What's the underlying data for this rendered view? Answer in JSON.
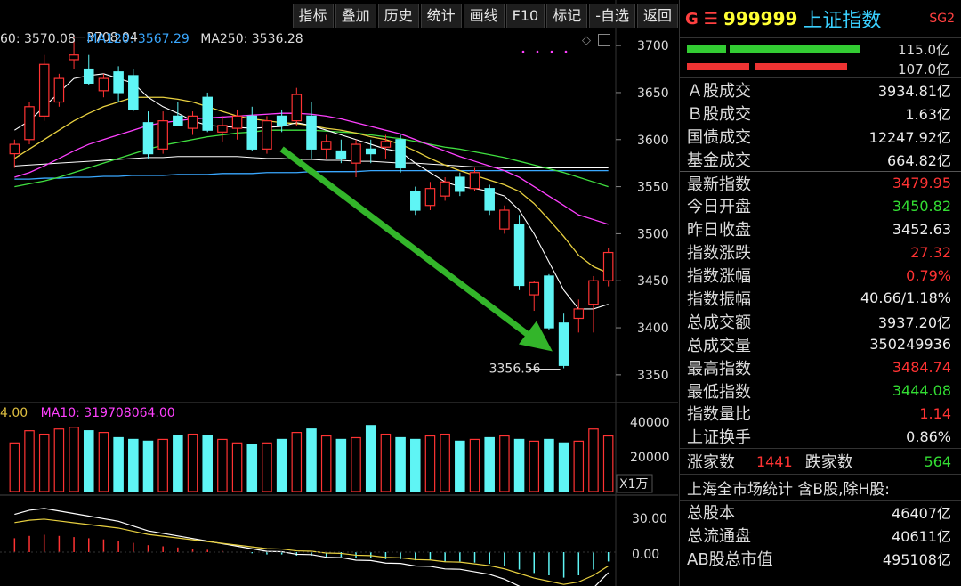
{
  "toolbar": {
    "buttons": [
      "指标",
      "叠加",
      "历史",
      "统计",
      "画线",
      "F10",
      "标记",
      "-自选",
      "返回"
    ]
  },
  "ma_line": {
    "ma60": "60: 3570.08",
    "ma120": "MA120: 3567.29",
    "ma250": "MA250: 3536.28"
  },
  "price_axis": [
    "3700",
    "3650",
    "3600",
    "3550",
    "3500",
    "3450",
    "3400",
    "3350"
  ],
  "annotations": {
    "high_label": "3708.94",
    "low_label": "3356.56"
  },
  "volume_line": {
    "ma5": "4.00",
    "ma10": "MA10: 319708064.00"
  },
  "volume_axis": [
    "40000",
    "20000"
  ],
  "volume_unit": "X1万",
  "macd_axis": [
    "30.00",
    "0.00"
  ],
  "colors": {
    "up": "#ff3333",
    "down": "#5ff5f5",
    "ma5": "#ffffff",
    "ma10": "#e8d040",
    "ma20": "#ff40ff",
    "ma30": "#40e040",
    "ma60": "#ffffff",
    "ma120": "#3aa8ff",
    "arrow": "#33b52a"
  },
  "chart_data": {
    "type": "candlestick",
    "ylim": [
      3330,
      3720
    ],
    "candles": [
      {
        "o": 3585,
        "h": 3600,
        "l": 3570,
        "c": 3595
      },
      {
        "o": 3600,
        "h": 3640,
        "l": 3595,
        "c": 3635
      },
      {
        "o": 3625,
        "h": 3690,
        "l": 3620,
        "c": 3680
      },
      {
        "o": 3640,
        "h": 3670,
        "l": 3635,
        "c": 3665
      },
      {
        "o": 3685,
        "h": 3709,
        "l": 3675,
        "c": 3690
      },
      {
        "o": 3675,
        "h": 3690,
        "l": 3658,
        "c": 3660
      },
      {
        "o": 3652,
        "h": 3670,
        "l": 3645,
        "c": 3665
      },
      {
        "o": 3672,
        "h": 3678,
        "l": 3640,
        "c": 3650
      },
      {
        "o": 3668,
        "h": 3675,
        "l": 3630,
        "c": 3632
      },
      {
        "o": 3618,
        "h": 3630,
        "l": 3580,
        "c": 3585
      },
      {
        "o": 3590,
        "h": 3630,
        "l": 3585,
        "c": 3620
      },
      {
        "o": 3625,
        "h": 3640,
        "l": 3618,
        "c": 3615
      },
      {
        "o": 3612,
        "h": 3630,
        "l": 3605,
        "c": 3625
      },
      {
        "o": 3645,
        "h": 3650,
        "l": 3608,
        "c": 3610
      },
      {
        "o": 3608,
        "h": 3625,
        "l": 3598,
        "c": 3615
      },
      {
        "o": 3612,
        "h": 3632,
        "l": 3600,
        "c": 3625
      },
      {
        "o": 3625,
        "h": 3635,
        "l": 3588,
        "c": 3590
      },
      {
        "o": 3590,
        "h": 3625,
        "l": 3585,
        "c": 3620
      },
      {
        "o": 3625,
        "h": 3632,
        "l": 3608,
        "c": 3615
      },
      {
        "o": 3620,
        "h": 3655,
        "l": 3615,
        "c": 3648
      },
      {
        "o": 3625,
        "h": 3640,
        "l": 3580,
        "c": 3590
      },
      {
        "o": 3590,
        "h": 3605,
        "l": 3580,
        "c": 3598
      },
      {
        "o": 3588,
        "h": 3600,
        "l": 3575,
        "c": 3580
      },
      {
        "o": 3575,
        "h": 3600,
        "l": 3560,
        "c": 3595
      },
      {
        "o": 3590,
        "h": 3600,
        "l": 3575,
        "c": 3585
      },
      {
        "o": 3592,
        "h": 3605,
        "l": 3580,
        "c": 3598
      },
      {
        "o": 3600,
        "h": 3605,
        "l": 3565,
        "c": 3570
      },
      {
        "o": 3545,
        "h": 3550,
        "l": 3520,
        "c": 3525
      },
      {
        "o": 3530,
        "h": 3555,
        "l": 3525,
        "c": 3548
      },
      {
        "o": 3540,
        "h": 3560,
        "l": 3535,
        "c": 3555
      },
      {
        "o": 3560,
        "h": 3565,
        "l": 3540,
        "c": 3545
      },
      {
        "o": 3548,
        "h": 3570,
        "l": 3545,
        "c": 3565
      },
      {
        "o": 3548,
        "h": 3552,
        "l": 3520,
        "c": 3525
      },
      {
        "o": 3505,
        "h": 3530,
        "l": 3500,
        "c": 3525
      },
      {
        "o": 3510,
        "h": 3520,
        "l": 3440,
        "c": 3445
      },
      {
        "o": 3435,
        "h": 3450,
        "l": 3418,
        "c": 3448
      },
      {
        "o": 3455,
        "h": 3457,
        "l": 3398,
        "c": 3400
      },
      {
        "o": 3405,
        "h": 3415,
        "l": 3357,
        "c": 3360
      },
      {
        "o": 3410,
        "h": 3430,
        "l": 3395,
        "c": 3420
      },
      {
        "o": 3425,
        "h": 3455,
        "l": 3395,
        "c": 3450
      },
      {
        "o": 3450,
        "h": 3485,
        "l": 3444,
        "c": 3480
      }
    ],
    "volume": [
      28000,
      35000,
      33000,
      36000,
      37000,
      35000,
      34000,
      31000,
      30000,
      29000,
      30000,
      32000,
      33000,
      32000,
      30000,
      28000,
      27000,
      28000,
      30000,
      34000,
      36000,
      32000,
      30000,
      31000,
      38000,
      33000,
      31000,
      30000,
      32000,
      33000,
      29000,
      30000,
      31000,
      32000,
      30000,
      29000,
      30000,
      28000,
      29000,
      36000,
      32000
    ],
    "ma_series": {
      "ma5": [
        3610,
        3620,
        3635,
        3650,
        3665,
        3668,
        3670,
        3665,
        3660,
        3645,
        3635,
        3628,
        3620,
        3615,
        3614,
        3613,
        3612,
        3613,
        3614,
        3618,
        3615,
        3610,
        3605,
        3600,
        3595,
        3590,
        3587,
        3575,
        3565,
        3555,
        3550,
        3548,
        3545,
        3540,
        3525,
        3500,
        3470,
        3440,
        3420,
        3420,
        3425
      ],
      "ma10": [
        3580,
        3590,
        3600,
        3610,
        3620,
        3628,
        3635,
        3640,
        3645,
        3645,
        3645,
        3643,
        3640,
        3635,
        3630,
        3625,
        3622,
        3620,
        3618,
        3617,
        3615,
        3612,
        3610,
        3607,
        3603,
        3600,
        3595,
        3588,
        3580,
        3573,
        3567,
        3562,
        3557,
        3552,
        3545,
        3532,
        3515,
        3497,
        3477,
        3465,
        3458
      ],
      "ma20": [
        3560,
        3565,
        3572,
        3580,
        3588,
        3595,
        3600,
        3605,
        3610,
        3615,
        3618,
        3620,
        3622,
        3623,
        3624,
        3625,
        3626,
        3627,
        3628,
        3628,
        3627,
        3625,
        3622,
        3618,
        3614,
        3610,
        3606,
        3600,
        3594,
        3588,
        3582,
        3577,
        3572,
        3567,
        3560,
        3550,
        3540,
        3530,
        3520,
        3515,
        3510
      ],
      "ma30": [
        3550,
        3553,
        3556,
        3560,
        3565,
        3570,
        3575,
        3580,
        3585,
        3590,
        3594,
        3597,
        3600,
        3603,
        3605,
        3607,
        3608,
        3610,
        3610,
        3610,
        3610,
        3609,
        3608,
        3607,
        3605,
        3603,
        3601,
        3598,
        3595,
        3592,
        3590,
        3587,
        3584,
        3581,
        3577,
        3573,
        3569,
        3565,
        3560,
        3555,
        3550
      ],
      "ma60": [
        3572,
        3573,
        3574,
        3575,
        3576,
        3577,
        3578,
        3579,
        3580,
        3581,
        3581,
        3582,
        3582,
        3582,
        3582,
        3582,
        3581,
        3580,
        3580,
        3579,
        3579,
        3578,
        3578,
        3577,
        3577,
        3576,
        3575,
        3575,
        3574,
        3573,
        3572,
        3571,
        3571,
        3570,
        3570,
        3570,
        3570,
        3570,
        3570,
        3570,
        3570
      ],
      "ma120": [
        3558,
        3558,
        3559,
        3559,
        3560,
        3560,
        3561,
        3561,
        3562,
        3562,
        3562,
        3563,
        3563,
        3563,
        3564,
        3564,
        3564,
        3565,
        3565,
        3565,
        3566,
        3566,
        3566,
        3566,
        3567,
        3567,
        3567,
        3567,
        3567,
        3567,
        3567,
        3567,
        3567,
        3567,
        3567,
        3567,
        3567,
        3567,
        3567,
        3567,
        3567
      ]
    },
    "macd_hist": [
      12,
      14,
      15,
      14,
      13,
      12,
      11,
      10,
      8,
      6,
      5,
      4,
      3,
      2,
      1,
      0,
      -1,
      -2,
      -2,
      -3,
      -3,
      -4,
      -4,
      -5,
      -5,
      -6,
      -6,
      -7,
      -7,
      -8,
      -8,
      -9,
      -10,
      -12,
      -15,
      -18,
      -20,
      -22,
      -20,
      -15,
      -8
    ]
  },
  "panel": {
    "header": {
      "g": "G",
      "menu": "☰",
      "code": "999999",
      "name": "上证指数",
      "sg": "SG2"
    },
    "bars": [
      {
        "value": "115.0亿",
        "color": "#33cc33"
      },
      {
        "value": "107.0亿",
        "color": "#ee3333"
      }
    ],
    "turnover": [
      {
        "label": "Ａ股成交",
        "value": "3934.81亿"
      },
      {
        "label": "Ｂ股成交",
        "value": "1.63亿"
      },
      {
        "label": "国债成交",
        "value": "12247.92亿"
      },
      {
        "label": "基金成交",
        "value": "664.82亿"
      }
    ],
    "stats": [
      {
        "label": "最新指数",
        "value": "3479.95",
        "color": "red"
      },
      {
        "label": "今日开盘",
        "value": "3450.82",
        "color": "green"
      },
      {
        "label": "昨日收盘",
        "value": "3452.63",
        "color": "white"
      },
      {
        "label": "指数涨跌",
        "value": "27.32",
        "color": "red"
      },
      {
        "label": "指数涨幅",
        "value": "0.79%",
        "color": "red"
      },
      {
        "label": "指数振幅",
        "value": "40.66/1.18%",
        "color": "white"
      },
      {
        "label": "总成交额",
        "value": "3937.20亿",
        "color": "white"
      },
      {
        "label": "总成交量",
        "value": "350249936",
        "color": "white"
      },
      {
        "label": "最高指数",
        "value": "3484.74",
        "color": "red"
      },
      {
        "label": "最低指数",
        "value": "3444.08",
        "color": "green"
      },
      {
        "label": "指数量比",
        "value": "1.14",
        "color": "red"
      },
      {
        "label": "上证换手",
        "value": "0.86%",
        "color": "white"
      }
    ],
    "updown": {
      "up_label": "涨家数",
      "up": "1441",
      "down_label": "跌家数",
      "down": "564"
    },
    "market_title": "上海全市场统计 含B股,除H股:",
    "market": [
      {
        "label": "总股本",
        "value": "46407亿"
      },
      {
        "label": "总流通盘",
        "value": "40611亿"
      },
      {
        "label": "AB股总市值",
        "value": "495108亿"
      }
    ]
  }
}
